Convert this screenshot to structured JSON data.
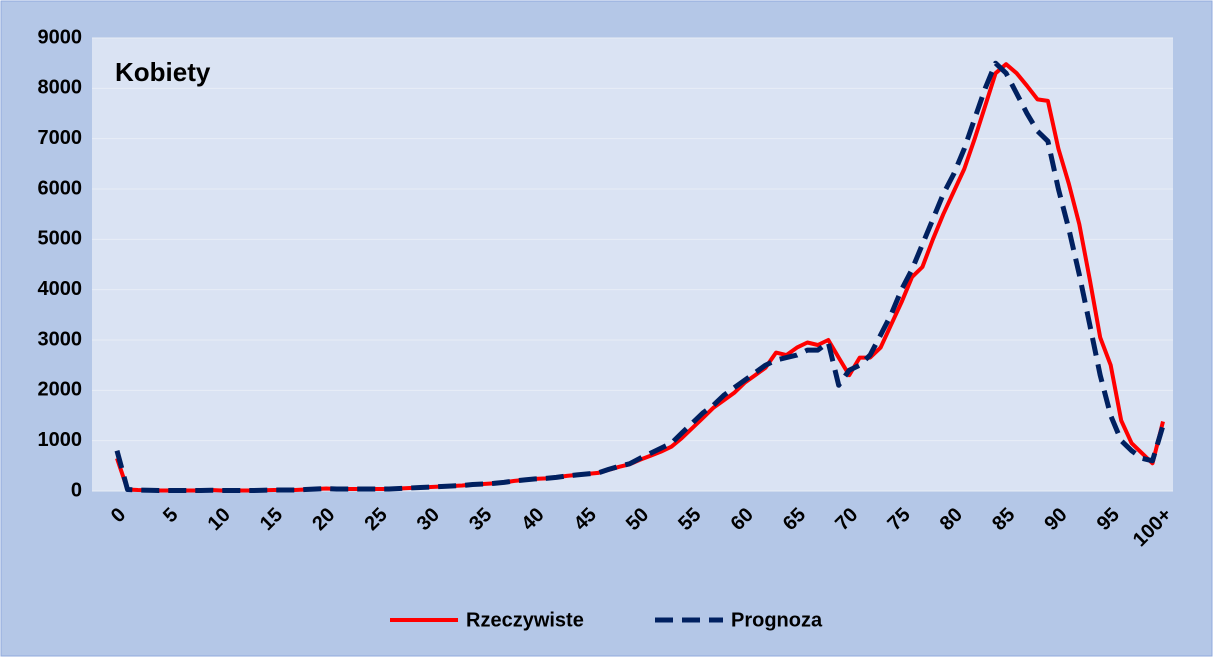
{
  "chart_data": {
    "type": "line",
    "title": "Kobiety",
    "categories": [
      "0",
      null,
      null,
      null,
      null,
      "5",
      null,
      null,
      null,
      null,
      "10",
      null,
      null,
      null,
      null,
      "15",
      null,
      null,
      null,
      null,
      "20",
      null,
      null,
      null,
      null,
      "25",
      null,
      null,
      null,
      null,
      "30",
      null,
      null,
      null,
      null,
      "35",
      null,
      null,
      null,
      null,
      "40",
      null,
      null,
      null,
      null,
      "45",
      null,
      null,
      null,
      null,
      "50",
      null,
      null,
      null,
      null,
      "55",
      null,
      null,
      null,
      null,
      "60",
      null,
      null,
      null,
      null,
      "65",
      null,
      null,
      null,
      null,
      "70",
      null,
      null,
      null,
      null,
      "75",
      null,
      null,
      null,
      null,
      "80",
      null,
      null,
      null,
      null,
      "85",
      null,
      null,
      null,
      null,
      "90",
      null,
      null,
      null,
      null,
      "95",
      null,
      null,
      null,
      null,
      "100+"
    ],
    "series": [
      {
        "name": "Rzeczywiste",
        "color": "#ff0000",
        "dashed": false,
        "values": [
          650,
          30,
          20,
          15,
          10,
          10,
          10,
          10,
          10,
          20,
          10,
          10,
          10,
          10,
          15,
          20,
          20,
          20,
          30,
          40,
          50,
          40,
          40,
          40,
          40,
          40,
          40,
          50,
          60,
          70,
          80,
          90,
          100,
          110,
          130,
          140,
          150,
          170,
          200,
          220,
          240,
          250,
          270,
          300,
          320,
          340,
          360,
          420,
          480,
          530,
          620,
          700,
          780,
          880,
          1050,
          1250,
          1450,
          1650,
          1800,
          1950,
          2150,
          2300,
          2450,
          2750,
          2700,
          2850,
          2950,
          2900,
          3000,
          2650,
          2300,
          2650,
          2650,
          2850,
          3300,
          3750,
          4250,
          4450,
          5000,
          5500,
          5950,
          6400,
          7000,
          7650,
          8300,
          8480,
          8300,
          8050,
          7780,
          7750,
          6800,
          6100,
          5300,
          4200,
          3050,
          2500,
          1400,
          950,
          750,
          550,
          1380
        ]
      },
      {
        "name": "Prognoza",
        "color": "#002060",
        "dashed": true,
        "values": [
          800,
          30,
          20,
          15,
          10,
          10,
          10,
          10,
          10,
          15,
          10,
          10,
          10,
          10,
          15,
          20,
          20,
          20,
          30,
          40,
          50,
          40,
          40,
          40,
          40,
          40,
          40,
          50,
          60,
          70,
          80,
          90,
          100,
          110,
          130,
          140,
          150,
          170,
          200,
          220,
          240,
          250,
          270,
          300,
          320,
          340,
          360,
          430,
          490,
          540,
          650,
          750,
          850,
          950,
          1150,
          1350,
          1550,
          1700,
          1900,
          2050,
          2200,
          2350,
          2500,
          2600,
          2650,
          2700,
          2800,
          2800,
          2950,
          2100,
          2400,
          2500,
          2700,
          3100,
          3500,
          4000,
          4400,
          4900,
          5400,
          5900,
          6300,
          6800,
          7400,
          8000,
          8500,
          8300,
          7900,
          7500,
          7150,
          6950,
          6000,
          5200,
          4300,
          3300,
          2300,
          1500,
          1000,
          800,
          650,
          600,
          1300
        ]
      }
    ],
    "ylim": [
      0,
      9000
    ],
    "yticks": [
      0,
      1000,
      2000,
      3000,
      4000,
      5000,
      6000,
      7000,
      8000,
      9000
    ],
    "grid": true,
    "legend": "bottom"
  }
}
